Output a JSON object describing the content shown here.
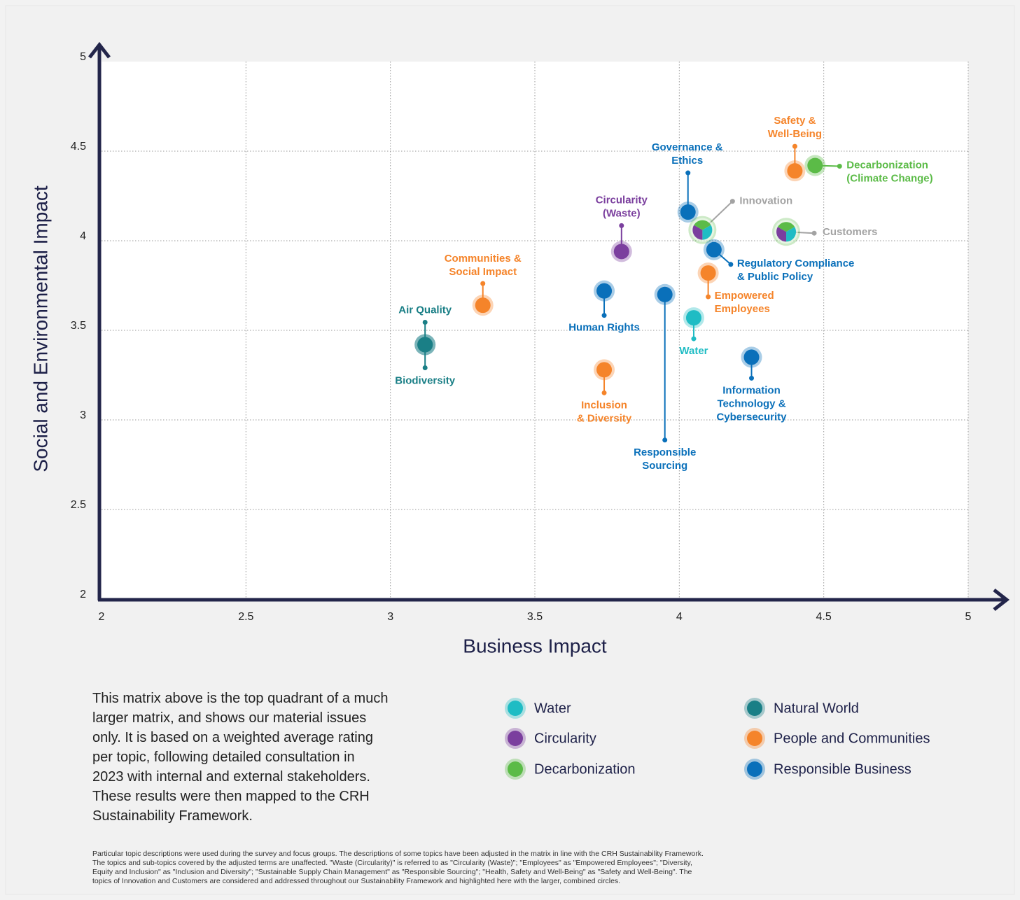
{
  "chart_data": {
    "type": "scatter",
    "x_label": "Business Impact",
    "y_label": "Social and Environmental Impact",
    "xlim": [
      2,
      5
    ],
    "ylim": [
      2,
      5
    ],
    "xticks": [
      2,
      2.5,
      3,
      3.5,
      4,
      4.5,
      5
    ],
    "yticks": [
      2,
      2.5,
      3,
      3.5,
      4,
      4.5,
      5
    ],
    "grid": true,
    "series": [
      {
        "name": "Water",
        "color": "#1fbcc4"
      },
      {
        "name": "Natural World",
        "color": "#1a7f86"
      },
      {
        "name": "Circularity",
        "color": "#7b3f9e"
      },
      {
        "name": "People and Communities",
        "color": "#f5842a"
      },
      {
        "name": "Decarbonization",
        "color": "#5bbb47"
      },
      {
        "name": "Responsible Business",
        "color": "#0a70ba"
      }
    ],
    "points": [
      {
        "label": [
          "Air Quality"
        ],
        "group": "Natural World",
        "x": 3.12,
        "y": 3.42
      },
      {
        "label": [
          "Biodiversity"
        ],
        "group": "Natural World",
        "x": 3.12,
        "y": 3.42
      },
      {
        "label": [
          "Communities &",
          "Social Impact"
        ],
        "group": "People and Communities",
        "x": 3.32,
        "y": 3.64
      },
      {
        "label": [
          "Human Rights"
        ],
        "group": "Responsible Business",
        "x": 3.74,
        "y": 3.72
      },
      {
        "label": [
          "Inclusion",
          "& Diversity"
        ],
        "group": "People and Communities",
        "x": 3.74,
        "y": 3.28
      },
      {
        "label": [
          "Circularity",
          "(Waste)"
        ],
        "group": "Circularity",
        "x": 3.8,
        "y": 3.94
      },
      {
        "label": [
          "Responsible",
          "Sourcing"
        ],
        "group": "Responsible Business",
        "x": 3.95,
        "y": 3.7
      },
      {
        "label": [
          "Governance &",
          "Ethics"
        ],
        "group": "Responsible Business",
        "x": 4.03,
        "y": 4.16
      },
      {
        "label": [
          "Innovation"
        ],
        "groups": [
          "Decarbonization",
          "Water",
          "Circularity"
        ],
        "x": 4.08,
        "y": 4.06
      },
      {
        "label": [
          "Regulatory Compliance",
          "& Public Policy"
        ],
        "group": "Responsible Business",
        "x": 4.12,
        "y": 3.95
      },
      {
        "label": [
          "Empowered",
          "Employees"
        ],
        "group": "People and Communities",
        "x": 4.1,
        "y": 3.82
      },
      {
        "label": [
          "Water"
        ],
        "group": "Water",
        "x": 4.05,
        "y": 3.57
      },
      {
        "label": [
          "Information",
          "Technology &",
          "Cybersecurity"
        ],
        "group": "Responsible Business",
        "x": 4.25,
        "y": 3.35
      },
      {
        "label": [
          "Customers"
        ],
        "groups": [
          "Decarbonization",
          "Water",
          "Circularity"
        ],
        "x": 4.37,
        "y": 4.05
      },
      {
        "label": [
          "Safety &",
          "Well-Being"
        ],
        "group": "People and Communities",
        "x": 4.4,
        "y": 4.39
      },
      {
        "label": [
          "Decarbonization",
          "(Climate Change)"
        ],
        "group": "Decarbonization",
        "x": 4.47,
        "y": 4.42
      }
    ]
  },
  "description": [
    "This matrix above is the top quadrant of a much",
    "larger matrix, and shows our material issues",
    "only. It is based on a weighted average rating",
    "per topic, following detailed consultation in",
    "2023 with internal and external stakeholders.",
    "These results were then mapped to the CRH",
    "Sustainability Framework."
  ],
  "footnote": [
    "Particular topic descriptions were used during the survey and focus groups. The descriptions of some topics have been adjusted in the matrix in line with the CRH Sustainability Framework.",
    "The topics and sub-topics covered by the adjusted terms are unaffected. \"Waste (Circularity)\" is referred to as \"Circularity (Waste)\"; \"Employees\" as \"Empowered Employees\"; \"Diversity,",
    "Equity and Inclusion\" as \"Inclusion and Diversity\"; \"Sustainable Supply Chain Management\" as \"Responsible Sourcing\"; \"Health, Safety and Well-Being\" as \"Safety and Well-Being\". The",
    "topics of Innovation and Customers are considered and addressed throughout our Sustainability Framework and highlighted here with the larger, combined circles."
  ]
}
